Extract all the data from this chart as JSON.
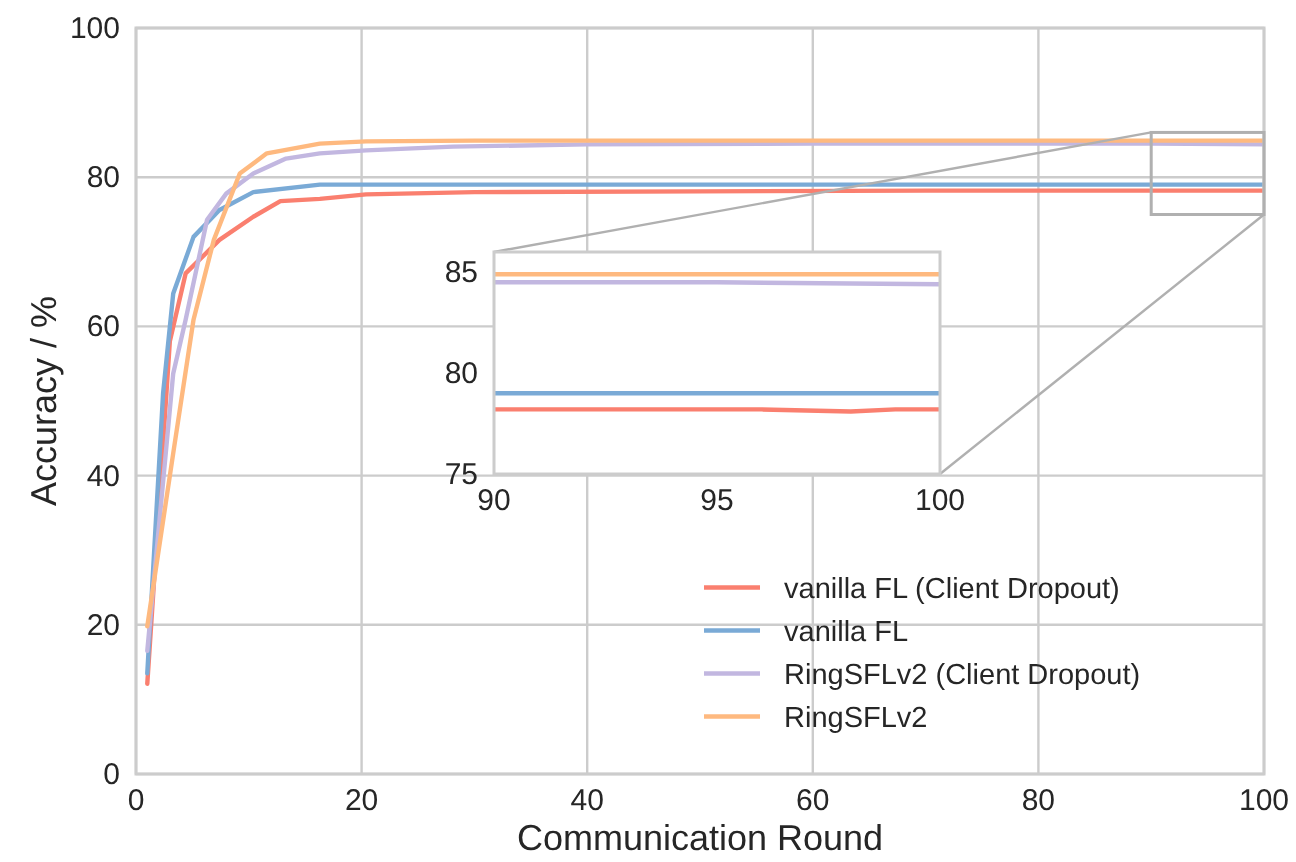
{
  "chart_data": [
    {
      "type": "line",
      "xlabel": "Communication Round",
      "ylabel": "Accuracy / %",
      "xlim": [
        0,
        100
      ],
      "ylim": [
        0,
        100
      ],
      "xticks": [
        0,
        20,
        40,
        60,
        80,
        100
      ],
      "yticks": [
        0,
        20,
        40,
        60,
        80,
        100
      ],
      "grid": true,
      "legend": "bottom right",
      "line_style": "solid",
      "series": [
        {
          "name": "vanilla FL (Client Dropout)",
          "color": "#fa7f6f",
          "x": [
            1,
            3,
            4.4,
            7.4,
            10.4,
            12.8,
            16.3,
            20.4,
            30,
            50,
            70,
            90,
            100
          ],
          "values": [
            12.1,
            58,
            67.1,
            71.6,
            74.7,
            76.8,
            77.1,
            77.7,
            78.0,
            78.1,
            78.2,
            78.2,
            78.2
          ]
        },
        {
          "name": "vanilla FL",
          "color": "#7aaad6",
          "x": [
            1,
            2.4,
            3.3,
            5.1,
            7.4,
            10.4,
            16.3,
            30,
            50,
            70,
            90,
            100
          ],
          "values": [
            13.5,
            51,
            64.4,
            72,
            75.6,
            78,
            79,
            79,
            79,
            79,
            79,
            79
          ]
        },
        {
          "name": "RingSFLv2 (Client Dropout)",
          "color": "#c2b7e0",
          "x": [
            1,
            3.3,
            4.4,
            6.3,
            8.0,
            10.4,
            13.3,
            16.3,
            20.4,
            28.1,
            40,
            60,
            80,
            90,
            100
          ],
          "values": [
            16.5,
            53.7,
            60.9,
            74.3,
            77.8,
            80.5,
            82.5,
            83.2,
            83.6,
            84.1,
            84.4,
            84.5,
            84.5,
            84.5,
            84.4
          ]
        },
        {
          "name": "RingSFLv2",
          "color": "#feb97f",
          "x": [
            1,
            3.3,
            5.1,
            6.9,
            9.2,
            11.6,
            16.3,
            20.4,
            30,
            50,
            70,
            90,
            100
          ],
          "values": [
            19.8,
            43,
            60.9,
            71.6,
            80.5,
            83.2,
            84.5,
            84.8,
            84.9,
            84.9,
            84.9,
            84.9,
            84.9
          ]
        }
      ]
    },
    {
      "type": "line",
      "xlim": [
        90,
        100
      ],
      "ylim": [
        75,
        86
      ],
      "xticks": [
        90,
        95,
        100
      ],
      "yticks": [
        75,
        80,
        85
      ],
      "line_style": "solid",
      "series": [
        {
          "color": "#fa7f6f",
          "x": [
            90,
            92,
            94,
            96,
            98,
            99,
            100
          ],
          "values": [
            78.2,
            78.2,
            78.2,
            78.2,
            78.1,
            78.2,
            78.2
          ]
        },
        {
          "color": "#7aaad6",
          "x": [
            90,
            95,
            100
          ],
          "values": [
            79,
            79,
            79
          ]
        },
        {
          "color": "#c2b7e0",
          "x": [
            90,
            95,
            100
          ],
          "values": [
            84.5,
            84.5,
            84.4
          ]
        },
        {
          "color": "#feb97f",
          "x": [
            90,
            95,
            100
          ],
          "values": [
            84.9,
            84.9,
            84.9
          ]
        }
      ]
    }
  ]
}
